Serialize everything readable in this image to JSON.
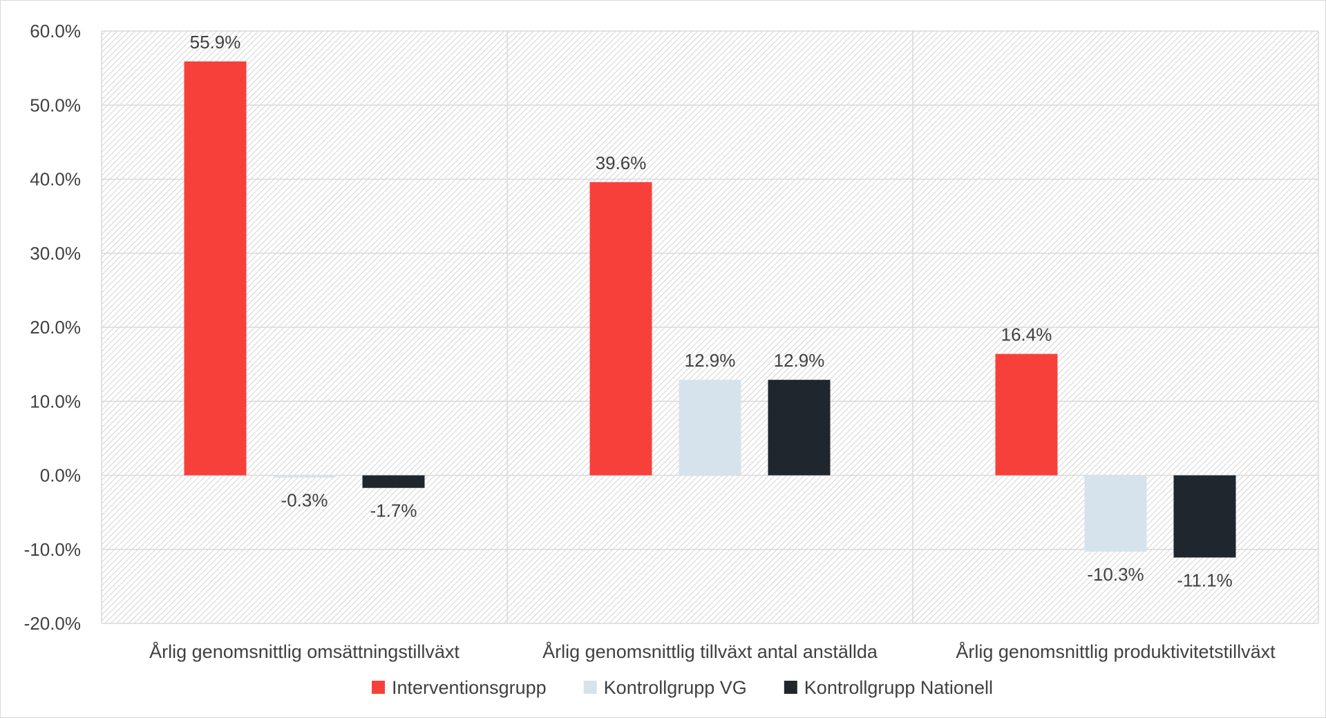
{
  "chart_data": {
    "type": "bar",
    "categories": [
      "Årlig genomsnittlig omsättningstillväxt",
      "Årlig genomsnittlig tillväxt antal anställda",
      "Årlig genomsnittlig produktivitetstillväxt"
    ],
    "series": [
      {
        "name": "Interventionsgrupp",
        "color": "#f8403a",
        "values": [
          55.9,
          39.6,
          16.4
        ]
      },
      {
        "name": "Kontrollgrupp VG",
        "color": "#d6e3ec",
        "values": [
          -0.3,
          12.9,
          -10.3
        ]
      },
      {
        "name": "Kontrollgrupp Nationell",
        "color": "#1f262d",
        "values": [
          -1.7,
          12.9,
          -11.1
        ]
      }
    ],
    "data_labels": [
      [
        "55.9%",
        "39.6%",
        "16.4%"
      ],
      [
        "-0.3%",
        "12.9%",
        "-10.3%"
      ],
      [
        "-1.7%",
        "12.9%",
        "-11.1%"
      ]
    ],
    "ylim": [
      -20,
      60
    ],
    "ytick_values": [
      -20,
      -10,
      0,
      10,
      20,
      30,
      40,
      50,
      60
    ],
    "ytick_labels": [
      "-20.0%",
      "-10.0%",
      "0.0%",
      "10.0%",
      "20.0%",
      "30.0%",
      "40.0%",
      "50.0%",
      "60.0%"
    ],
    "title": "",
    "xlabel": "",
    "ylabel": "",
    "grid": true,
    "legend_position": "bottom",
    "plot_background": "hatched-diagonal-gray"
  }
}
